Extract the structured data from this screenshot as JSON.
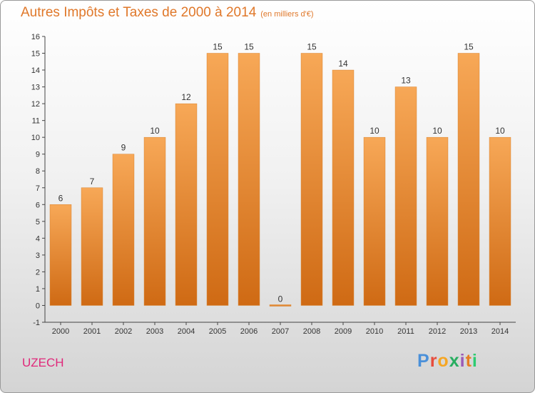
{
  "header": {
    "title": "Autres Impôts et Taxes de 2000 à 2014",
    "unit": "(en milliers d'€)"
  },
  "footer": {
    "place": "UZECH",
    "logo": "Proxiti"
  },
  "colors": {
    "title": "#e0782a",
    "bar_top": "#f7a857",
    "bar_bottom": "#cf6a14",
    "place": "#e0287a"
  },
  "chart_data": {
    "type": "bar",
    "title": "Autres Impôts et Taxes de 2000 à 2014",
    "subtitle": "(en milliers d'€)",
    "categories": [
      "2000",
      "2001",
      "2002",
      "2003",
      "2004",
      "2005",
      "2006",
      "2007",
      "2008",
      "2009",
      "2010",
      "2011",
      "2012",
      "2013",
      "2014"
    ],
    "values": [
      6,
      7,
      9,
      10,
      12,
      15,
      15,
      0,
      15,
      14,
      10,
      13,
      10,
      15,
      10
    ],
    "yticks": [
      -1,
      0,
      1,
      2,
      3,
      4,
      5,
      6,
      7,
      8,
      9,
      10,
      11,
      12,
      13,
      14,
      15,
      16
    ],
    "ylim": [
      -1,
      16
    ],
    "xlabel": "",
    "ylabel": "",
    "grid": false,
    "legend": "none"
  }
}
